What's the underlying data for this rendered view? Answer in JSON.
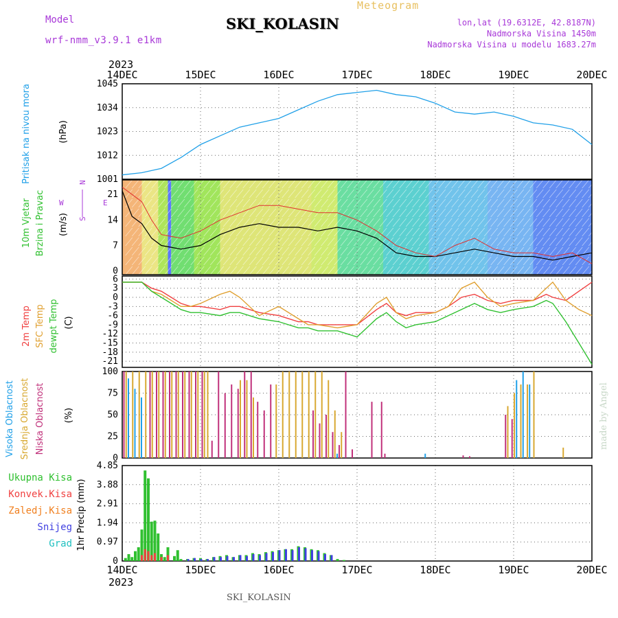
{
  "header": {
    "model_label": "Model",
    "model_name": "wrf-nmm_v3.9.1 e1km",
    "meteogram_label": "Meteogram",
    "station": "SKI_KOLASIN",
    "lonlat": "lon,lat (19.6312E, 42.8187N)",
    "elevation": "Nadmorska Visina 1450m",
    "model_elevation": "Nadmorska Visina u modelu 1683.27m",
    "made_by": "made by Angel",
    "footer_station": "SKI_KOLASIN"
  },
  "time_axis": {
    "year": "2023",
    "ticks": [
      "14DEC",
      "15DEC",
      "16DEC",
      "17DEC",
      "18DEC",
      "19DEC",
      "20DEC"
    ]
  },
  "chart_data": [
    {
      "type": "line",
      "panel": "pressure",
      "ylabel_1": "Pritisak na nivou mora",
      "ylabel_2": "(hPa)",
      "ylim": [
        1001,
        1045
      ],
      "yticks": [
        "1045",
        "1034",
        "1023",
        "1012",
        "1001"
      ],
      "color": "#20a0e8",
      "x_hours": [
        0,
        6,
        12,
        18,
        24,
        30,
        36,
        42,
        48,
        54,
        60,
        66,
        72,
        78,
        84,
        90,
        96,
        102,
        108,
        114,
        120,
        126,
        132,
        138,
        144
      ],
      "values": [
        1003,
        1004,
        1006,
        1011,
        1017,
        1021,
        1025,
        1027,
        1029,
        1033,
        1037,
        1040,
        1041,
        1042,
        1040,
        1039,
        1036,
        1032,
        1031,
        1032,
        1030,
        1027,
        1026,
        1024,
        1017
      ]
    },
    {
      "type": "line",
      "panel": "wind",
      "ylabel_1": "10m Vjetar",
      "ylabel_2": "Brzina i Pravac",
      "ylabel_3": "(m/s)",
      "compass": {
        "n": "N",
        "w": "W",
        "e": "E",
        "s": "S"
      },
      "ylim": [
        -1,
        25
      ],
      "yticks": [
        "21",
        "14",
        "7",
        "0"
      ],
      "series": [
        {
          "name": "speed",
          "color": "#000000",
          "x_hours": [
            0,
            3,
            6,
            9,
            12,
            18,
            24,
            30,
            36,
            42,
            48,
            54,
            60,
            66,
            72,
            78,
            84,
            90,
            96,
            102,
            108,
            114,
            120,
            126,
            132,
            138,
            144
          ],
          "values": [
            22,
            15,
            13,
            9,
            7,
            6,
            7,
            10,
            12,
            13,
            12,
            12,
            11,
            12,
            11,
            9,
            5,
            4,
            4,
            5,
            6,
            5,
            4,
            4,
            3,
            4,
            5
          ]
        },
        {
          "name": "gust",
          "color": "#e03030",
          "x_hours": [
            0,
            3,
            6,
            9,
            12,
            18,
            24,
            30,
            36,
            42,
            48,
            54,
            60,
            66,
            72,
            78,
            84,
            90,
            96,
            102,
            108,
            114,
            120,
            126,
            132,
            138,
            144
          ],
          "values": [
            23,
            21,
            19,
            14,
            10,
            9,
            11,
            14,
            16,
            18,
            18,
            17,
            16,
            16,
            14,
            11,
            7,
            5,
            4,
            7,
            9,
            6,
            5,
            5,
            4,
            5,
            2
          ]
        }
      ]
    },
    {
      "type": "line",
      "panel": "temperature",
      "ylabel_1": "2m Temp",
      "ylabel_2": "SFC Temp",
      "ylabel_3": "dewpt Temp",
      "ylabel_4": "(C)",
      "ylim": [
        -23,
        7
      ],
      "yticks": [
        "6",
        "3",
        "0",
        "-3",
        "-6",
        "-9",
        "-12",
        "-15",
        "-18",
        "-21"
      ],
      "x_hours": [
        0,
        3,
        6,
        9,
        12,
        15,
        18,
        21,
        24,
        30,
        33,
        36,
        42,
        48,
        54,
        57,
        60,
        66,
        72,
        78,
        81,
        84,
        87,
        90,
        96,
        100,
        104,
        108,
        112,
        116,
        120,
        126,
        130,
        132,
        136,
        140,
        144
      ],
      "series": [
        {
          "name": "2m Temp",
          "color": "#f04040",
          "values": [
            5,
            5,
            5,
            3,
            2,
            0,
            -2,
            -3,
            -3,
            -4,
            -3,
            -3,
            -5,
            -6,
            -8,
            -8,
            -9,
            -9,
            -9,
            -4,
            -2,
            -5,
            -6,
            -5,
            -5,
            -3,
            0,
            1,
            -1,
            -2,
            -1,
            -1,
            1,
            0,
            -1,
            2,
            5
          ]
        },
        {
          "name": "SFC Temp",
          "color": "#e0a030",
          "values": [
            5,
            5,
            5,
            2,
            1,
            -1,
            -3,
            -3,
            -2,
            1,
            2,
            0,
            -6,
            -3,
            -7,
            -9,
            -9,
            -10,
            -9,
            -2,
            0,
            -5,
            -7,
            -6,
            -5,
            -3,
            3,
            5,
            0,
            -3,
            -2,
            -1,
            3,
            5,
            -1,
            -4,
            -6
          ]
        },
        {
          "name": "dewpt Temp",
          "color": "#30c030",
          "values": [
            5,
            5,
            5,
            2,
            0,
            -2,
            -4,
            -5,
            -5,
            -6,
            -5,
            -5,
            -7,
            -8,
            -10,
            -10,
            -11,
            -11,
            -13,
            -7,
            -5,
            -8,
            -10,
            -9,
            -8,
            -6,
            -4,
            -2,
            -4,
            -5,
            -4,
            -3,
            -1,
            -2,
            -8,
            -15,
            -22
          ]
        }
      ]
    },
    {
      "type": "bar",
      "panel": "clouds",
      "ylabel_1": "Visoka Oblacnost",
      "ylabel_2": "Srednja Oblacnost",
      "ylabel_3": "Niska Oblacnost",
      "ylabel_4": "(%)",
      "ylim": [
        0,
        100
      ],
      "yticks": [
        "100",
        "75",
        "50",
        "25",
        "0"
      ],
      "series": [
        {
          "name": "Visoka Oblacnost",
          "color": "#20a0e8",
          "x_hours": [
            2,
            4,
            6,
            66,
            93,
            121,
            123,
            125
          ],
          "values": [
            92,
            80,
            70,
            5,
            5,
            90,
            100,
            85
          ]
        },
        {
          "name": "Srednja Oblacnost",
          "color": "#d8a830",
          "x_hours": [
            1,
            3,
            5,
            7,
            9,
            11,
            13,
            15,
            17,
            19,
            21,
            23,
            25,
            26,
            36,
            38,
            40,
            47,
            49,
            51,
            53,
            55,
            57,
            59,
            61,
            63,
            65,
            67,
            118,
            120,
            122,
            124,
            126,
            135
          ],
          "values": [
            100,
            100,
            100,
            100,
            100,
            100,
            100,
            100,
            100,
            100,
            100,
            100,
            100,
            100,
            90,
            90,
            70,
            85,
            100,
            100,
            100,
            100,
            100,
            100,
            100,
            90,
            55,
            30,
            60,
            75,
            85,
            85,
            100,
            12
          ]
        },
        {
          "name": "Niska Oblacnost",
          "color": "#c0307a",
          "x_hours": [
            0,
            8,
            10,
            12,
            14,
            16,
            18,
            20,
            22,
            24,
            27,
            29,
            31,
            33,
            35,
            37,
            39,
            41,
            43,
            45,
            58,
            60,
            62,
            64,
            66,
            68,
            70,
            76,
            79,
            80,
            104,
            106,
            117,
            119
          ],
          "values": [
            100,
            100,
            100,
            100,
            100,
            100,
            100,
            100,
            100,
            100,
            20,
            100,
            75,
            85,
            80,
            100,
            100,
            65,
            55,
            85,
            55,
            40,
            50,
            30,
            15,
            100,
            10,
            65,
            65,
            5,
            3,
            2,
            50,
            45
          ]
        }
      ]
    },
    {
      "type": "bar",
      "panel": "precipitation",
      "ylabel_1": "1hr Precip (mm)",
      "legend": [
        "Ukupna Kisa",
        "Konvek.Kisa",
        "Zaledj.Kisa",
        "Snijeg",
        "Grad"
      ],
      "legend_colors": [
        "#30c030",
        "#f04040",
        "#f08020",
        "#4040e0",
        "#20c0c0"
      ],
      "ylim": [
        0,
        4.85
      ],
      "yticks": [
        "4.85",
        "3.88",
        "2.91",
        "1.94",
        "0.97",
        "0"
      ],
      "series": [
        {
          "name": "Ukupna Kisa",
          "color": "#30c030",
          "x_hours": [
            1,
            2,
            3,
            4,
            5,
            6,
            7,
            8,
            9,
            10,
            11,
            12,
            13,
            14,
            16,
            17,
            18,
            20,
            22,
            24,
            26,
            28,
            30,
            32,
            34,
            36,
            38,
            40,
            42,
            44,
            46,
            48,
            50,
            52,
            54,
            56,
            58,
            60,
            62,
            64,
            66,
            68
          ],
          "values": [
            0.15,
            0.35,
            0.2,
            0.5,
            0.7,
            1.6,
            4.6,
            4.2,
            2.0,
            2.05,
            1.4,
            0.35,
            0.2,
            0.7,
            0.25,
            0.55,
            0.1,
            0.1,
            0.15,
            0.15,
            0.1,
            0.2,
            0.25,
            0.3,
            0.2,
            0.3,
            0.3,
            0.4,
            0.35,
            0.45,
            0.5,
            0.55,
            0.6,
            0.6,
            0.75,
            0.7,
            0.6,
            0.55,
            0.4,
            0.3,
            0.1,
            0.05
          ]
        },
        {
          "name": "Snijeg",
          "color": "#4040e0",
          "x_hours": [
            20,
            22,
            24,
            26,
            28,
            30,
            32,
            34,
            36,
            38,
            40,
            42,
            44,
            46,
            48,
            50,
            52,
            54,
            56,
            58,
            60,
            62,
            64
          ],
          "values": [
            0.1,
            0.15,
            0.1,
            0.1,
            0.2,
            0.2,
            0.25,
            0.2,
            0.3,
            0.25,
            0.35,
            0.3,
            0.4,
            0.45,
            0.55,
            0.6,
            0.55,
            0.7,
            0.65,
            0.55,
            0.5,
            0.35,
            0.3
          ]
        },
        {
          "name": "Konvek.Kisa",
          "color": "#f04040",
          "x_hours": [
            6,
            7,
            8,
            9,
            10,
            12,
            14
          ],
          "values": [
            0.3,
            0.6,
            0.5,
            0.3,
            0.4,
            0.2,
            0.3
          ]
        }
      ]
    }
  ]
}
